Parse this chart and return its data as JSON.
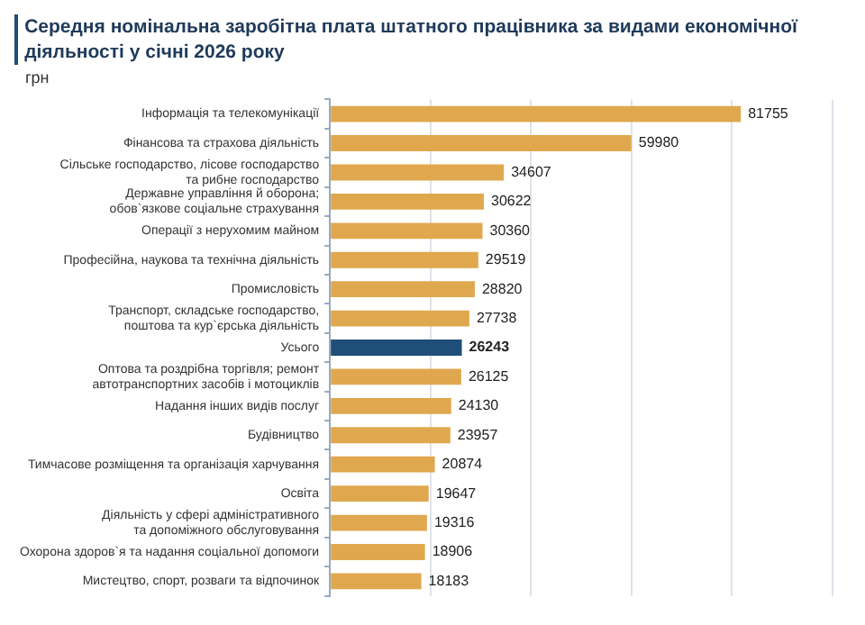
{
  "chart_data": {
    "type": "bar",
    "orientation": "horizontal",
    "title": "Середня номінальна заробітна плата штатного працівника за видами економічної діяльності у січні 2026 року",
    "subtitle": "грн",
    "categories": [
      "Інформація та телекомунікації",
      "Фінансова та страхова діяльність",
      "Сільське господарство, лісове господарство\nта рибне господарство",
      "Державне управління й оборона;\nобов`язкове соціальне страхування",
      "Операції з нерухомим майном",
      "Професійна, наукова та технічна діяльність",
      "Промисловість",
      "Транспорт, складське господарство,\nпоштова та кур`єрська діяльність",
      "Усього",
      "Оптова та роздрібна торгівля; ремонт\nавтотранспортних засобів і мотоциклів",
      "Надання інших видів послуг",
      "Будівництво",
      "Тимчасове розміщення та організація харчування",
      "Освіта",
      "Діяльність у сфері адміністративного\nта допоміжного обслуговування",
      "Охорона здоров`я та надання соціальної допомоги",
      "Мистецтво, спорт, розваги та відпочинок"
    ],
    "values": [
      81755,
      59980,
      34607,
      30622,
      30360,
      29519,
      28820,
      27738,
      26243,
      26125,
      24130,
      23957,
      20874,
      19647,
      19316,
      18906,
      18183
    ],
    "colors": [
      "#e0a84e",
      "#e0a84e",
      "#e0a84e",
      "#e0a84e",
      "#e0a84e",
      "#e0a84e",
      "#e0a84e",
      "#e0a84e",
      "#1f4e79",
      "#e0a84e",
      "#e0a84e",
      "#e0a84e",
      "#e0a84e",
      "#e0a84e",
      "#e0a84e",
      "#e0a84e",
      "#e0a84e"
    ],
    "xlim": [
      0,
      100000
    ],
    "xticks": [
      {
        "value": 0,
        "label": null
      },
      {
        "value": 20000,
        "label": null
      },
      {
        "value": 40000,
        "label": null
      },
      {
        "value": 60000,
        "label": null
      },
      {
        "value": 80000,
        "label": null
      },
      {
        "value": 100000,
        "label": null
      }
    ],
    "grid": true,
    "tick_labels": "y",
    "data_labels": true,
    "legend": false
  }
}
